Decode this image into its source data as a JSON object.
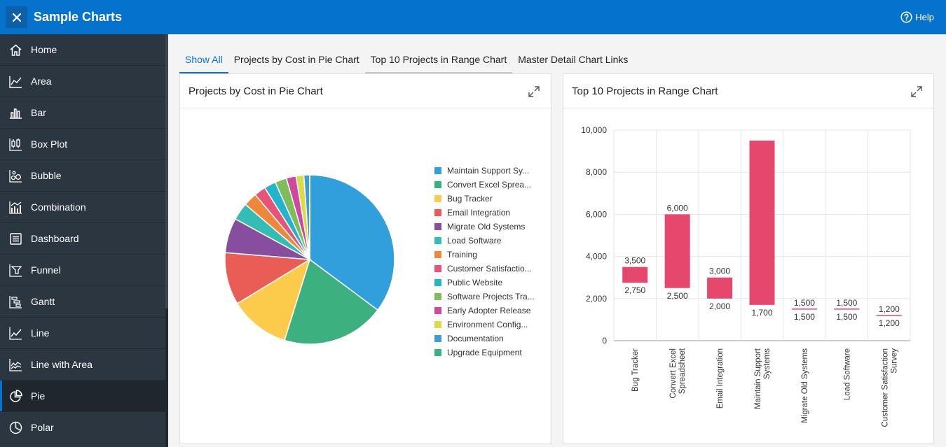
{
  "header": {
    "title": "Sample Charts",
    "help_label": "Help"
  },
  "sidebar": {
    "items": [
      {
        "label": "Home",
        "icon": "home-icon"
      },
      {
        "label": "Area",
        "icon": "area-chart-icon"
      },
      {
        "label": "Bar",
        "icon": "bar-chart-icon"
      },
      {
        "label": "Box Plot",
        "icon": "box-plot-icon"
      },
      {
        "label": "Bubble",
        "icon": "bubble-chart-icon"
      },
      {
        "label": "Combination",
        "icon": "combination-chart-icon"
      },
      {
        "label": "Dashboard",
        "icon": "dashboard-icon"
      },
      {
        "label": "Funnel",
        "icon": "funnel-icon"
      },
      {
        "label": "Gantt",
        "icon": "gantt-icon"
      },
      {
        "label": "Line",
        "icon": "line-chart-icon"
      },
      {
        "label": "Line with Area",
        "icon": "line-area-chart-icon"
      },
      {
        "label": "Pie",
        "icon": "pie-chart-icon",
        "active": true
      },
      {
        "label": "Polar",
        "icon": "polar-chart-icon"
      }
    ]
  },
  "tabs": [
    {
      "label": "Show All",
      "active": true
    },
    {
      "label": "Projects by Cost in Pie Chart"
    },
    {
      "label": "Top 10 Projects in Range Chart"
    },
    {
      "label": "Master Detail Chart Links"
    }
  ],
  "pie_card": {
    "title": "Projects by Cost in Pie Chart"
  },
  "range_card": {
    "title": "Top 10 Projects in Range Chart"
  },
  "chart_data": [
    {
      "type": "pie",
      "title": "Projects by Cost in Pie Chart",
      "legend_position": "right",
      "slices": [
        {
          "label": "Maintain Support Sy...",
          "value": 95,
          "color": "#309fdb"
        },
        {
          "label": "Convert Excel Sprea...",
          "value": 53,
          "color": "#3cb07f"
        },
        {
          "label": "Bug Tracker",
          "value": 31,
          "color": "#fccb4c"
        },
        {
          "label": "Email Integration",
          "value": 27,
          "color": "#ea5c56"
        },
        {
          "label": "Migrate Old Systems",
          "value": 18,
          "color": "#874d9f"
        },
        {
          "label": "Load Software",
          "value": 9,
          "color": "#33bdb6"
        },
        {
          "label": "Training",
          "value": 7,
          "color": "#ef873a"
        },
        {
          "label": "Customer Satisfactio...",
          "value": 6,
          "color": "#e75478"
        },
        {
          "label": "Public Website",
          "value": 6,
          "color": "#22b4cd"
        },
        {
          "label": "Software Projects Tra...",
          "value": 6,
          "color": "#7fbd5a"
        },
        {
          "label": "Early Adopter Release",
          "value": 5,
          "color": "#d0479d"
        },
        {
          "label": "Environment Config...",
          "value": 4,
          "color": "#dbdb48"
        },
        {
          "label": "Documentation",
          "value": 3,
          "color": "#3b9ed6"
        },
        {
          "label": "Upgrade Equipment",
          "value": 0.01,
          "color": "#3cb07f"
        }
      ]
    },
    {
      "type": "bar",
      "subtype": "range",
      "title": "Top 10 Projects in Range Chart",
      "ylim": [
        0,
        10000
      ],
      "yticks": [
        0,
        2000,
        4000,
        6000,
        8000,
        10000
      ],
      "ytick_labels": [
        "0",
        "2,000",
        "4,000",
        "6,000",
        "8,000",
        "10,000"
      ],
      "color": "#e5476d",
      "categories": [
        {
          "label_lines": [
            "Bug Tracker"
          ],
          "low": 2750,
          "high": 3500,
          "low_label": "2,750",
          "high_label": "3,500"
        },
        {
          "label_lines": [
            "Convert Excel",
            "Spreadsheet"
          ],
          "low": 2500,
          "high": 6000,
          "low_label": "2,500",
          "high_label": "6,000"
        },
        {
          "label_lines": [
            "Email Integration"
          ],
          "low": 2000,
          "high": 3000,
          "low_label": "2,000",
          "high_label": "3,000"
        },
        {
          "label_lines": [
            "Maintain Support",
            "Systems"
          ],
          "low": 1700,
          "high": 9500,
          "low_label": "1,700",
          "high_label": ""
        },
        {
          "label_lines": [
            "Migrate Old Systems"
          ],
          "low": 1500,
          "high": 1500,
          "low_label": "1,500",
          "high_label": "1,500"
        },
        {
          "label_lines": [
            "Load Software"
          ],
          "low": 1500,
          "high": 1500,
          "low_label": "1,500",
          "high_label": "1,500"
        },
        {
          "label_lines": [
            "Customer Satisfaction",
            "Survey"
          ],
          "low": 1200,
          "high": 1200,
          "low_label": "1,200",
          "high_label": "1,200"
        }
      ]
    }
  ]
}
